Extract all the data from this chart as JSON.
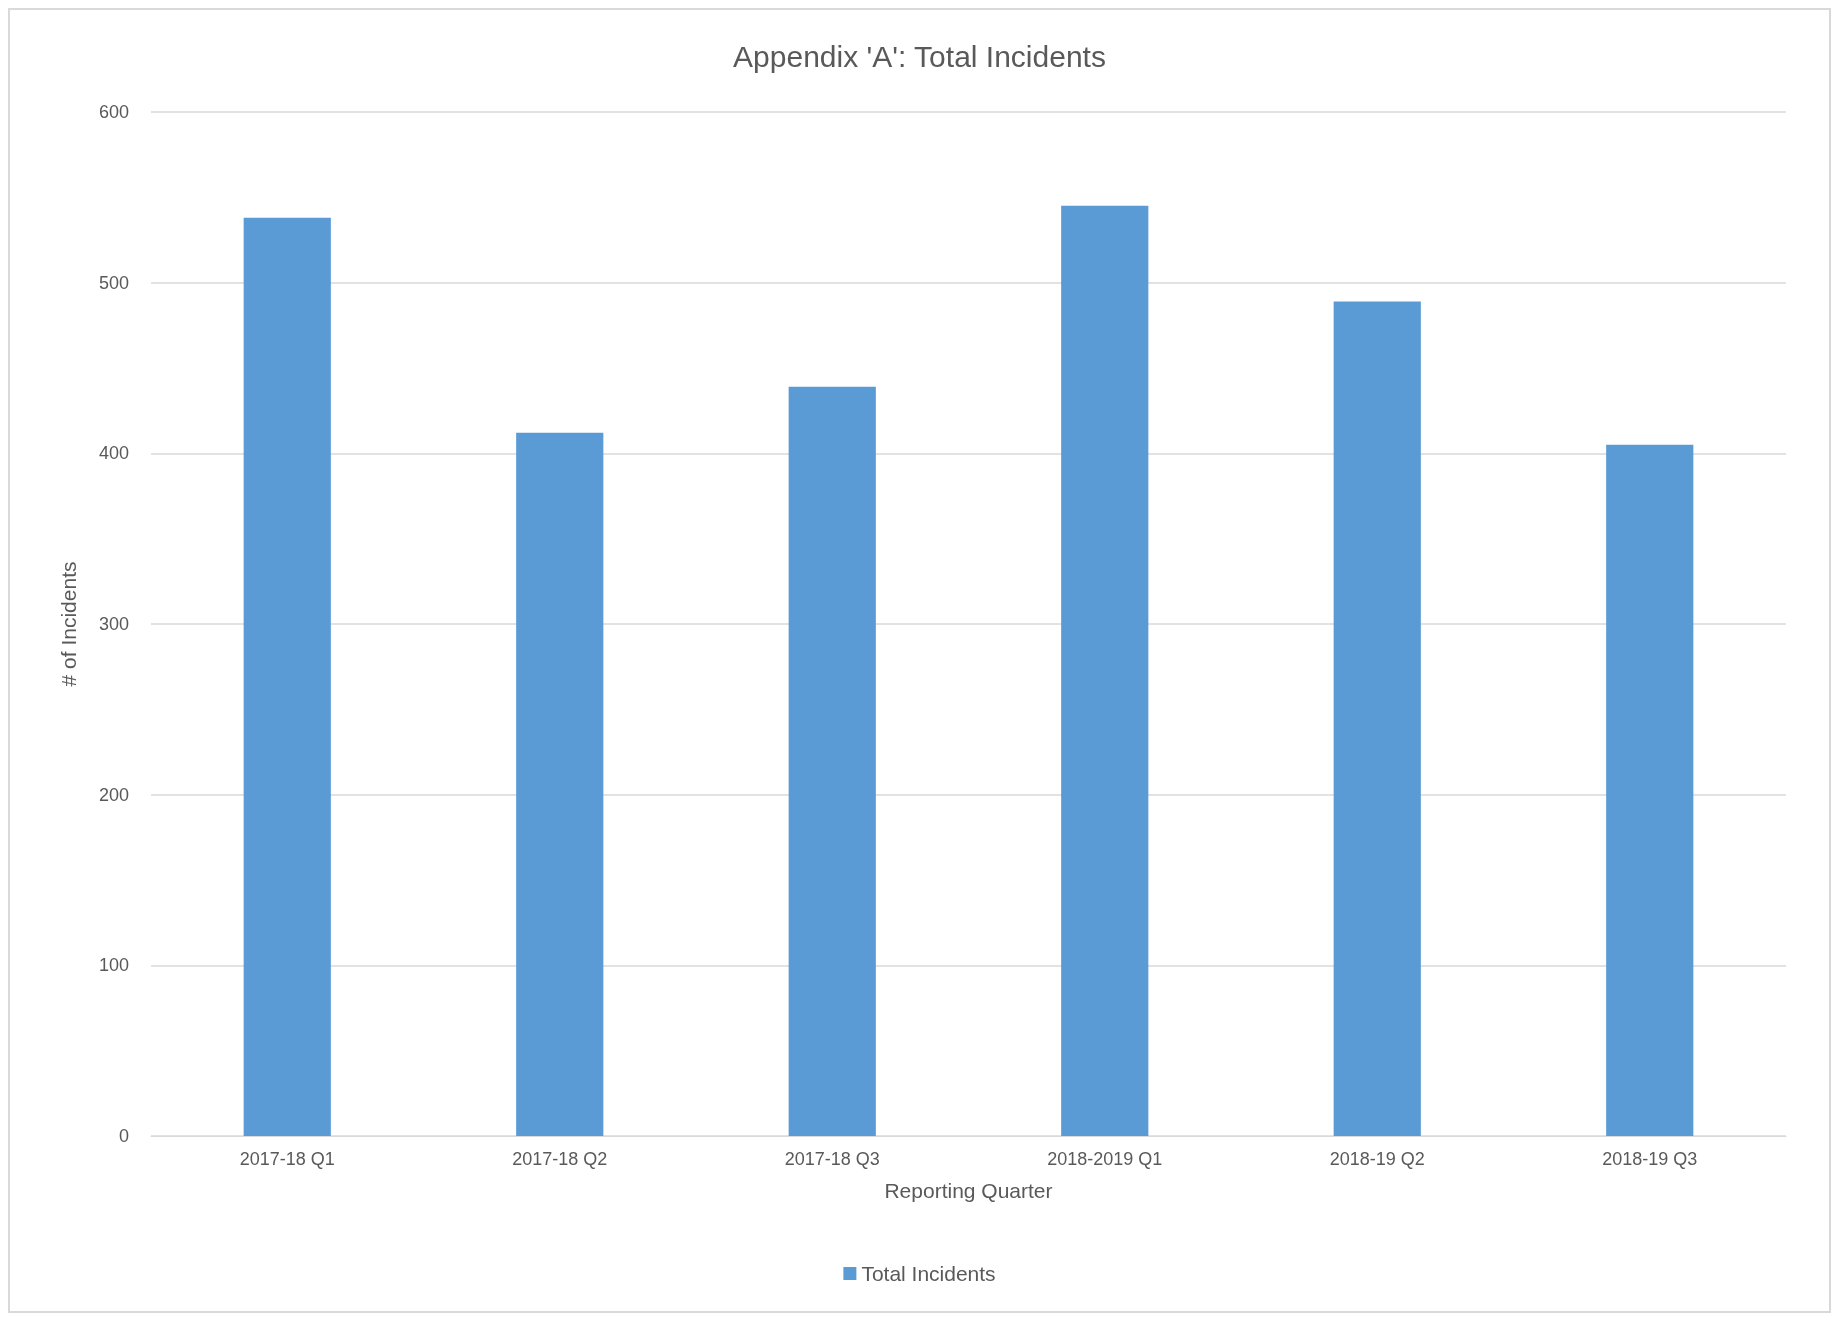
{
  "chart_data": {
    "type": "bar",
    "title": "Appendix 'A': Total Incidents",
    "xlabel": "Reporting Quarter",
    "ylabel": "# of Incidents",
    "categories": [
      "2017-18 Q1",
      "2017-18 Q2",
      "2017-18 Q3",
      "2018-2019 Q1",
      "2018-19 Q2",
      "2018-19 Q3"
    ],
    "series": [
      {
        "name": "Total Incidents",
        "color": "#5b9bd5",
        "values": [
          538,
          412,
          439,
          545,
          489,
          405
        ]
      }
    ],
    "ylim": [
      0,
      600
    ],
    "yticks": [
      0,
      100,
      200,
      300,
      400,
      500,
      600
    ],
    "grid": "y",
    "legend": "bottom"
  }
}
